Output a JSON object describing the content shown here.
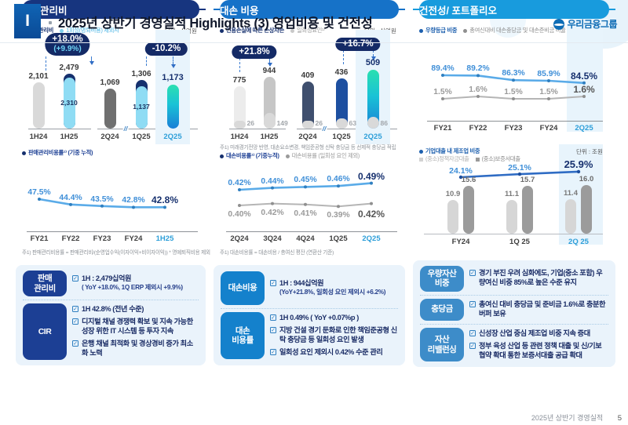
{
  "header": {
    "numeral": "I",
    "title": "2025년 상반기 경영실적 Highlights  (3) 영업비용 및 건전성",
    "logo_text": "우리금융그룹"
  },
  "page": {
    "footer_label": "2025년 상반기 경영실적",
    "page_number": "5"
  },
  "colors": {
    "navy": "#16306e",
    "royal": "#1d4fa0",
    "slate": "#3f4f6e",
    "cyan": "#8fdcf4",
    "light_gray": "#d9d9d9",
    "pale_gray": "#ececec",
    "mid_gray": "#c6c6c6",
    "dark_gray": "#6f6f6f",
    "sub_gray": "#d9d9d9",
    "teal_gradient": "linear-gradient(180deg,#2be0b0 0%,#19c2d6 45%,#1a7fd6 100%)",
    "line_blue": "#5aabe8",
    "dot_blue": "#2f7fc0",
    "line_gray": "#b5b5b5",
    "dot_gray": "#8f8f8f",
    "label_blue": "#3f8fd8",
    "label_gray": "#9a9a9a",
    "axis_label_blue": "#2e9fd9",
    "pill1": "#17357f",
    "pill2": "#1672c8",
    "pill3": "#189bdd",
    "box1": "#1c3f94",
    "box2": "#1481cc",
    "box3": "#3d8cc9",
    "highlight": "#e8f4fc"
  },
  "panels": [
    {
      "id": "sgna",
      "title": "판매관리비",
      "unit": "단위 : 십억원",
      "bar_legend": [
        {
          "label": "판매관리비",
          "color": "navy"
        },
        {
          "label": "1회성(명퇴비용) 제외시",
          "color": "cyan"
        }
      ],
      "line_legend": [
        {
          "label": "판매관리비용률¹⁾ (기중 누적)",
          "color": "navy"
        }
      ],
      "line_footnote": "주1) 판매관리비용률 = 판매관리비/(순영업수익(이자이익+비이자이익))    * 명예퇴직비용 제외",
      "summary": [
        {
          "label": "판매\n관리비",
          "items": [
            {
              "text": "1H : 2,479십억원",
              "sub": "( YoY +18.0%, 1Q ERP 제외시 +9.9%)"
            }
          ]
        },
        {
          "label": "CIR",
          "items": [
            {
              "text": "1H 42.8% (전년 수준)"
            },
            {
              "text": "디지털 채널 경쟁력 확보 및 지속 가능한 성장 위한 IT 시스템 등 투자 지속"
            },
            {
              "text": "은행 채널 최적화 및 경상경비 증가 최소화 노력"
            }
          ]
        }
      ]
    },
    {
      "id": "credit",
      "title": "대손 비용",
      "unit": "단위 : 십억원",
      "bar_legend": [
        {
          "label": "신용손실에 따른 손상차손",
          "color": "navy"
        },
        {
          "label": "일회성요인¹⁾",
          "color": "gray"
        }
      ],
      "bar_footnote": "주1) 미래경기전망 반영, 대손요소변경, 책임준공형 신탁 충당금 등 선제적 충당금 적립",
      "line_legend": [
        {
          "label": "대손비용률¹⁾ (기중누적)",
          "color": "navy"
        },
        {
          "label": "대손비용률 (일회성 요인 제외)",
          "color": "gray"
        }
      ],
      "line_footnote": "주1) 대손비용률 = 대손비용 / 총여신 평잔 (연환산 기준)",
      "summary": [
        {
          "label": "대손비용",
          "items": [
            {
              "text": "1H : 944십억원",
              "sub": "(YoY+21.8%, 일회성 요인 제외시 +6.2%)"
            }
          ]
        },
        {
          "label": "대손\n비용률",
          "items": [
            {
              "text": "1H 0.49% ( YoY +0.07%p )"
            },
            {
              "text": "지방 건설 경기 둔화로 인한 책임준공형 신탁 충당금 등 일회성 요인 발생"
            },
            {
              "text": "일회성 요인 제외시 0.42% 수준 관리"
            }
          ]
        }
      ]
    },
    {
      "id": "quality",
      "title": "건전성/ 포트폴리오",
      "line_legend": [
        {
          "label": "우량등급 비중",
          "color": "blue"
        },
        {
          "label": "총여신대비 대손충당금 및 대손준비금 비율",
          "color": "gray"
        }
      ],
      "mid_legend_line": "기업대출 내 제조업 비중",
      "mid_legend_bars": [
        {
          "label": "(중소)정책자금대출",
          "color": "light"
        },
        {
          "label": "(중소)보증서대출",
          "color": "dark"
        }
      ],
      "mid_unit": "단위 : 조원",
      "summary": [
        {
          "label": "우량자산\n비중",
          "items": [
            {
              "text": "경기 부진 우려 심화에도, 기업(중소 포함) 우량여신 비중 85%로 높은 수준 유지"
            }
          ]
        },
        {
          "label": "충당금",
          "items": [
            {
              "text": "총여신 대비 충당금 및 준비금 1.6%로 충분한 버퍼 보유"
            }
          ]
        },
        {
          "label": "자산\n리밸런싱",
          "items": [
            {
              "text": "신성장 산업 중심 제조업 비중 지속 증대"
            },
            {
              "text": "정부 육성 산업 등 관련 정책 대출 및 신/기보 협약 확대 통한 보증서대출 공급 확대"
            }
          ]
        }
      ]
    }
  ],
  "chart_data": [
    {
      "id": "sgna_bars",
      "type": "bar",
      "title": "판매관리비",
      "unit": "십억원",
      "legend": [
        "판매관리비",
        "1회성(명퇴비용) 제외시"
      ],
      "groups": [
        {
          "categories": [
            "1H24",
            "1H25"
          ],
          "bars": [
            {
              "label": "2,101",
              "value": 2101,
              "style": "lightgray"
            },
            {
              "label": "2,479",
              "value": 2479,
              "style": "navy-cyan",
              "sub": {
                "label": "2,310",
                "value": 2310
              }
            }
          ],
          "callout": {
            "main": "+18.0%",
            "sub": "(+9.9%)"
          }
        },
        {
          "categories": [
            "2Q24",
            "1Q25",
            "2Q25"
          ],
          "bars": [
            {
              "label": "1,069",
              "value": 1069,
              "style": "darkgray"
            },
            {
              "label": "1,306",
              "value": 1306,
              "style": "navy-cyan",
              "sub": {
                "label": "1,137",
                "value": 1137
              }
            },
            {
              "label": "1,173",
              "value": 1173,
              "style": "teal-gradient",
              "highlight": true
            }
          ],
          "callout": {
            "main": "-10.2%"
          }
        }
      ]
    },
    {
      "id": "sgna_cir_line",
      "type": "line",
      "categories": [
        "FY21",
        "FY22",
        "FY23",
        "FY24",
        "1H25"
      ],
      "series": [
        {
          "name": "판매관리비용률(기중 누적)",
          "values": [
            47.5,
            44.4,
            43.5,
            42.8,
            42.8
          ],
          "labels": [
            "47.5%",
            "44.4%",
            "43.5%",
            "42.8%",
            "42.8%"
          ],
          "color": "blue",
          "label_pos": "above"
        }
      ],
      "highlight_last": true
    },
    {
      "id": "credit_bars",
      "type": "bar",
      "title": "대손 비용",
      "unit": "십억원",
      "legend": [
        "신용손실에 따른 손상차손",
        "일회성요인"
      ],
      "groups": [
        {
          "categories": [
            "1H24",
            "1H25"
          ],
          "bars": [
            {
              "label": "775",
              "value": 775,
              "style": "palegray",
              "sub": {
                "label": "26",
                "value": 26
              }
            },
            {
              "label": "944",
              "value": 944,
              "style": "midgray",
              "sub": {
                "label": "149",
                "value": 149
              }
            }
          ],
          "callout": {
            "main": "+21.8%"
          }
        },
        {
          "categories": [
            "2Q24",
            "1Q25",
            "2Q25"
          ],
          "bars": [
            {
              "label": "409",
              "value": 409,
              "style": "slate",
              "sub": {
                "label": "26",
                "value": 26
              }
            },
            {
              "label": "436",
              "value": 436,
              "style": "royal",
              "sub": {
                "label": "63",
                "value": 63
              }
            },
            {
              "label": "509",
              "value": 509,
              "style": "teal-gradient",
              "sub": {
                "label": "86",
                "value": 86
              },
              "highlight": true
            }
          ],
          "callout": {
            "main": "+16.7%"
          }
        }
      ]
    },
    {
      "id": "credit_ratio_lines",
      "type": "line",
      "categories": [
        "2Q24",
        "3Q24",
        "4Q24",
        "1Q25",
        "2Q25"
      ],
      "series": [
        {
          "name": "대손비용률(기중누적)",
          "values": [
            0.42,
            0.44,
            0.45,
            0.46,
            0.49
          ],
          "labels": [
            "0.42%",
            "0.44%",
            "0.45%",
            "0.46%",
            "0.49%"
          ],
          "color": "blue",
          "label_pos": "above"
        },
        {
          "name": "대손비용률(일회성 요인 제외)",
          "values": [
            0.4,
            0.42,
            0.41,
            0.39,
            0.42
          ],
          "labels": [
            "0.40%",
            "0.42%",
            "0.41%",
            "0.39%",
            "0.42%"
          ],
          "color": "gray",
          "label_pos": "below"
        }
      ],
      "highlight_last": true
    },
    {
      "id": "quality_lines",
      "type": "line",
      "categories": [
        "FY21",
        "FY22",
        "FY23",
        "FY24",
        "2Q25"
      ],
      "series": [
        {
          "name": "우량등급 비중",
          "values": [
            89.4,
            89.2,
            86.3,
            85.9,
            84.5
          ],
          "labels": [
            "89.4%",
            "89.2%",
            "86.3%",
            "85.9%",
            "84.5%"
          ],
          "color": "blue",
          "label_pos": "above"
        },
        {
          "name": "총여신대비 대손충당금 및 대손준비금 비율",
          "values": [
            1.5,
            1.6,
            1.5,
            1.5,
            1.6
          ],
          "labels": [
            "1.5%",
            "1.6%",
            "1.5%",
            "1.5%",
            "1.6%"
          ],
          "color": "gray",
          "label_pos": "above"
        }
      ],
      "highlight_last": true
    },
    {
      "id": "mfg_mix",
      "type": "bar+line",
      "unit": "조원",
      "categories": [
        "FY24",
        "1Q 25",
        "2Q 25"
      ],
      "line": {
        "name": "기업대출 내 제조업 비중",
        "values": [
          24.1,
          25.1,
          25.9
        ],
        "labels": [
          "24.1%",
          "25.1%",
          "25.9%"
        ]
      },
      "series": [
        {
          "name": "(중소)정책자금대출",
          "values": [
            10.9,
            11.1,
            11.4
          ],
          "labels": [
            "10.9",
            "11.1",
            "11.4"
          ],
          "style": "light"
        },
        {
          "name": "(중소)보증서대출",
          "values": [
            15.6,
            15.7,
            16.0
          ],
          "labels": [
            "15.6",
            "15.7",
            "16.0"
          ],
          "style": "dark"
        }
      ],
      "highlight_last": true
    }
  ]
}
